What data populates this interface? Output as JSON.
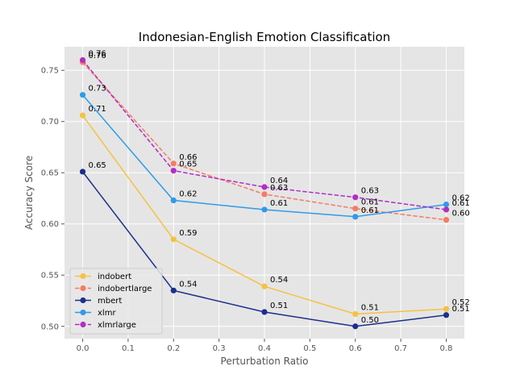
{
  "chart_data": {
    "type": "line",
    "title": "Indonesian-English Emotion Classification",
    "xlabel": "Perturbation Ratio",
    "ylabel": "Accuracy Score",
    "x": [
      0.0,
      0.2,
      0.4,
      0.6,
      0.8
    ],
    "xlim": [
      -0.04,
      0.84
    ],
    "ylim": [
      0.488,
      0.773
    ],
    "xticks": [
      0.0,
      0.1,
      0.2,
      0.3,
      0.4,
      0.5,
      0.6,
      0.7,
      0.8
    ],
    "xtick_labels": [
      "0.0",
      "0.1",
      "0.2",
      "0.3",
      "0.4",
      "0.5",
      "0.6",
      "0.7",
      "0.8"
    ],
    "yticks": [
      0.5,
      0.55,
      0.6,
      0.65,
      0.7,
      0.75
    ],
    "ytick_labels": [
      "0.50",
      "0.55",
      "0.60",
      "0.65",
      "0.70",
      "0.75"
    ],
    "grid": true,
    "legend_position": "lower-left",
    "series": [
      {
        "name": "indobert",
        "color": "#f5c242",
        "dashed": false,
        "values": [
          0.706,
          0.585,
          0.539,
          0.512,
          0.517
        ],
        "labels": [
          "0.71",
          "0.59",
          "0.54",
          "0.51",
          "0.52"
        ]
      },
      {
        "name": "indobertlarge",
        "color": "#f47c65",
        "dashed": true,
        "values": [
          0.758,
          0.659,
          0.629,
          0.615,
          0.604
        ],
        "labels": [
          "0.76",
          "0.66",
          "0.63",
          "0.61",
          "0.60"
        ]
      },
      {
        "name": "mbert",
        "color": "#1c2f8c",
        "dashed": false,
        "values": [
          0.651,
          0.535,
          0.514,
          0.5,
          0.511
        ],
        "labels": [
          "0.65",
          "0.54",
          "0.51",
          "0.50",
          "0.51"
        ]
      },
      {
        "name": "xlmr",
        "color": "#2f9be8",
        "dashed": false,
        "values": [
          0.726,
          0.623,
          0.614,
          0.607,
          0.619
        ],
        "labels": [
          "0.73",
          "0.62",
          "0.61",
          "0.61",
          "0.62"
        ]
      },
      {
        "name": "xlmrlarge",
        "color": "#b22ec4",
        "dashed": true,
        "values": [
          0.76,
          0.652,
          0.636,
          0.626,
          0.614
        ],
        "labels": [
          "0.76",
          "0.65",
          "0.64",
          "0.63",
          "0.61"
        ]
      }
    ]
  }
}
